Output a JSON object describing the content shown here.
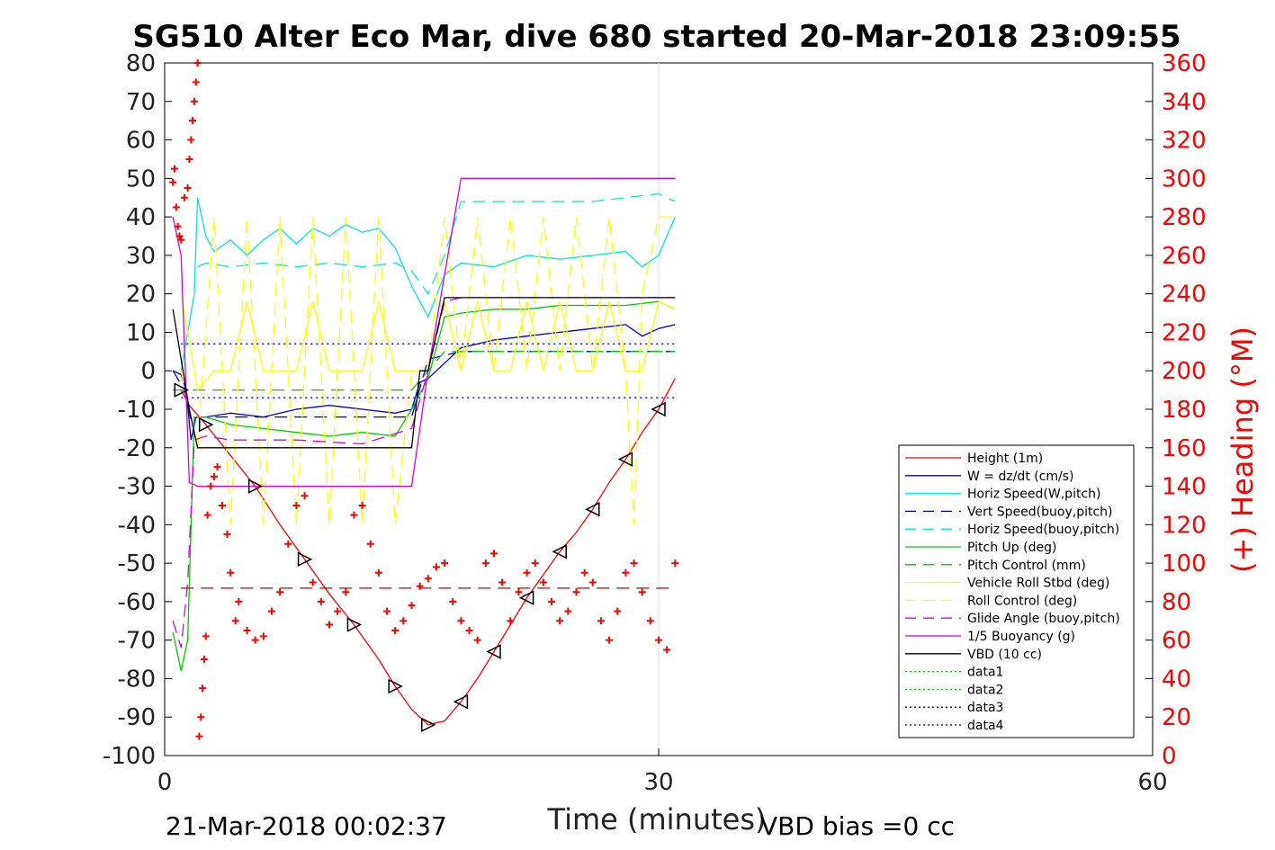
{
  "chart_data": {
    "type": "line",
    "title": "SG510 Alter Eco Mar, dive 680 started 20-Mar-2018 23:09:55",
    "xlabel": "Time (minutes)",
    "ylabel_right": "(+) Heading (°M)",
    "xlim": [
      0,
      60
    ],
    "ylim": [
      -100,
      80
    ],
    "ylim_right": [
      0,
      360
    ],
    "xticks": [
      "0",
      "30",
      "60"
    ],
    "yticks": [
      "80",
      "70",
      "60",
      "50",
      "40",
      "30",
      "20",
      "10",
      "0",
      "-10",
      "-20",
      "-30",
      "-40",
      "-50",
      "-60",
      "-70",
      "-80",
      "-90",
      "-100"
    ],
    "yticks_right": [
      "360",
      "340",
      "320",
      "300",
      "280",
      "260",
      "240",
      "220",
      "200",
      "180",
      "160",
      "140",
      "120",
      "100",
      "80",
      "60",
      "40",
      "20",
      "0"
    ],
    "footer_left": "21-Mar-2018 00:02:37",
    "footer_right": "VBD bias =0 cc",
    "grid": "vertical at x=30",
    "legend_position": "bottom-right",
    "legend": [
      {
        "label": "Height (1m)",
        "color": "#ff0000",
        "style": "solid"
      },
      {
        "label": "W = dz/dt (cm/s)",
        "color": "#0000cc",
        "style": "solid"
      },
      {
        "label": "Horiz Speed(W,pitch)",
        "color": "#00e5e5",
        "style": "solid"
      },
      {
        "label": "Vert Speed(buoy,pitch)",
        "color": "#0000cc",
        "style": "dashed"
      },
      {
        "label": "Horiz Speed(buoy,pitch)",
        "color": "#00e5e5",
        "style": "dashed"
      },
      {
        "label": "Pitch Up (deg)",
        "color": "#00cc00",
        "style": "solid"
      },
      {
        "label": "Pitch Control (mm)",
        "color": "#00cc00",
        "style": "dashed"
      },
      {
        "label": "Vehicle Roll Stbd (deg)",
        "color": "#ffff00",
        "style": "solid"
      },
      {
        "label": "Roll Control (deg)",
        "color": "#ffff00",
        "style": "dashed"
      },
      {
        "label": "Glide Angle (buoy,pitch)",
        "color": "#dd00dd",
        "style": "dashed"
      },
      {
        "label": "1/5 Buoyancy (g)",
        "color": "#dd00dd",
        "style": "solid"
      },
      {
        "label": "VBD (10 cc)",
        "color": "#000000",
        "style": "solid"
      },
      {
        "label": "data1",
        "color": "#00cc00",
        "style": "dotted"
      },
      {
        "label": "data2",
        "color": "#00cc00",
        "style": "dotted"
      },
      {
        "label": "data3",
        "color": "#0000cc",
        "style": "dotted"
      },
      {
        "label": "data4",
        "color": "#0000cc",
        "style": "dotted"
      }
    ],
    "series": [
      {
        "name": "Height (1m)",
        "color": "#ff0000",
        "style": "solid",
        "x": [
          1.0,
          1.5,
          2.5,
          4,
          5.5,
          7,
          8.5,
          10,
          11.5,
          13,
          14,
          15,
          16,
          17,
          18,
          19,
          20,
          21,
          22,
          23,
          24,
          25,
          26,
          27,
          28,
          29,
          30,
          31
        ],
        "y": [
          -5,
          -9,
          -14,
          -22,
          -30,
          -40,
          -49,
          -58,
          -66,
          -75,
          -82,
          -88,
          -92,
          -91,
          -86,
          -80,
          -73,
          -66,
          -59,
          -53,
          -47,
          -42,
          -36,
          -29,
          -23,
          -16,
          -10,
          -2
        ]
      },
      {
        "name": "W = dz/dt (cm/s)",
        "color": "#0000cc",
        "style": "solid",
        "x": [
          0.5,
          1.0,
          1.3,
          1.6,
          1.9,
          2.5,
          4,
          6,
          8,
          10,
          12,
          14,
          15,
          15.5,
          16,
          16.5,
          18,
          20,
          22,
          24,
          26,
          28,
          29,
          30,
          31
        ],
        "y": [
          0,
          -1,
          -5,
          -18,
          -12,
          -12,
          -11,
          -12,
          -10,
          -9,
          -10,
          -11,
          -10,
          -3,
          -2,
          0,
          6,
          8,
          9,
          10,
          11,
          12,
          9,
          11,
          12
        ]
      },
      {
        "name": "Horiz Speed(W,pitch)",
        "color": "#00e5e5",
        "style": "solid",
        "x": [
          1.0,
          1.8,
          2.0,
          2.5,
          3,
          4,
          5,
          6,
          7,
          8,
          9,
          10,
          11,
          12,
          13,
          14,
          15,
          16,
          17,
          18,
          20,
          22,
          24,
          26,
          28,
          29,
          30,
          31
        ],
        "y": [
          0,
          20,
          45,
          35,
          31,
          34,
          30,
          34,
          37,
          33,
          37,
          35,
          38,
          36,
          37,
          32,
          22,
          14,
          25,
          28,
          27,
          30,
          29,
          30,
          31,
          27,
          30,
          40
        ]
      },
      {
        "name": "Vert Speed(buoy,pitch)",
        "color": "#0000cc",
        "style": "dashed",
        "x": [
          0.5,
          1.2,
          1.6,
          2,
          2.5,
          15,
          16,
          18,
          31
        ],
        "y": [
          0,
          -5,
          -13,
          -12,
          -12,
          -12,
          3,
          5,
          5
        ]
      },
      {
        "name": "Horiz Speed(buoy,pitch)",
        "color": "#00e5e5",
        "style": "dashed",
        "x": [
          2,
          2.5,
          4,
          6,
          8,
          10,
          12,
          14,
          15,
          16,
          17,
          18,
          20,
          22,
          24,
          26,
          28,
          30,
          31
        ],
        "y": [
          27,
          28,
          27,
          28,
          27,
          28,
          27,
          28,
          26,
          20,
          30,
          44,
          44,
          44,
          44,
          44,
          45,
          46,
          44
        ]
      },
      {
        "name": "Pitch Up (deg)",
        "color": "#00cc00",
        "style": "solid",
        "x": [
          0.5,
          1.0,
          1.4,
          1.8,
          2.5,
          4,
          6,
          8,
          10,
          12,
          14,
          15,
          16,
          17,
          18,
          20,
          22,
          24,
          26,
          28,
          30,
          31
        ],
        "y": [
          -68,
          -78,
          -70,
          -12,
          -12,
          -14,
          -15,
          -16,
          -17,
          -16,
          -17,
          -10,
          -2,
          14,
          15,
          16,
          16,
          17,
          17,
          17,
          18,
          16
        ]
      },
      {
        "name": "Pitch Control (mm)",
        "color": "#00cc00",
        "style": "dashed",
        "x": [
          0.5,
          2,
          15,
          16,
          17,
          31
        ],
        "y": [
          -5,
          -5,
          -5,
          0,
          5,
          5
        ]
      },
      {
        "name": "Vehicle Roll Stbd (deg)",
        "color": "#ffff00",
        "style": "solid",
        "x": [
          1,
          2,
          3,
          4,
          5,
          6,
          7,
          8,
          9,
          10,
          11,
          12,
          13,
          14,
          15,
          16,
          17,
          18,
          19,
          20,
          21,
          22,
          23,
          24,
          25,
          26,
          27,
          28,
          29,
          30,
          31
        ],
        "y": [
          20,
          -5,
          0,
          0,
          18,
          0,
          0,
          0,
          18,
          0,
          0,
          0,
          18,
          0,
          0,
          0,
          18,
          0,
          18,
          0,
          0,
          18,
          0,
          18,
          0,
          0,
          18,
          0,
          0,
          18,
          16
        ]
      },
      {
        "name": "Roll Control (deg)",
        "color": "#ffff00",
        "style": "dashed",
        "x": [
          1,
          2,
          3,
          4,
          5,
          6,
          7,
          8,
          9,
          10,
          11,
          12,
          13,
          14,
          15,
          16,
          17,
          18,
          19,
          20,
          21,
          22,
          23,
          24,
          25,
          26,
          27,
          28,
          28.5,
          29,
          30,
          31
        ],
        "y": [
          0,
          -20,
          40,
          -40,
          40,
          -40,
          40,
          -40,
          40,
          -40,
          40,
          -40,
          40,
          -40,
          0,
          0,
          40,
          0,
          40,
          0,
          40,
          0,
          40,
          0,
          40,
          0,
          40,
          0,
          -40,
          20,
          40,
          40
        ]
      },
      {
        "name": "Glide Angle (buoy,pitch)",
        "color": "#dd00dd",
        "style": "dashed",
        "x": [
          0.5,
          1.0,
          1.4,
          1.8,
          2.5,
          4,
          8,
          12,
          15,
          16,
          17,
          18,
          22,
          26,
          31
        ],
        "y": [
          -65,
          -72,
          -55,
          -18,
          -17,
          -18,
          -18,
          -19,
          -15,
          0,
          18,
          19,
          19,
          19,
          19
        ]
      },
      {
        "name": "1/5 Buoyancy (g)",
        "color": "#dd00dd",
        "style": "solid",
        "x": [
          0.5,
          1.0,
          1.5,
          2.0,
          15,
          16,
          18,
          31
        ],
        "y": [
          40,
          30,
          -29,
          -30,
          -30,
          0,
          50,
          50
        ]
      },
      {
        "name": "VBD (10 cc)",
        "color": "#000000",
        "style": "solid",
        "x": [
          0.5,
          1.5,
          2.0,
          14,
          15,
          15.5,
          16,
          17,
          31
        ],
        "y": [
          16,
          -10,
          -20,
          -20,
          -20,
          0,
          0,
          19,
          19
        ]
      },
      {
        "name": "data1",
        "color": "#0000cc",
        "style": "dotted",
        "x": [
          1.0,
          31
        ],
        "y": [
          7,
          7
        ]
      },
      {
        "name": "data2",
        "color": "#0000cc",
        "style": "dotted",
        "x": [
          1.0,
          31
        ],
        "y": [
          -7,
          -7
        ]
      },
      {
        "name": "data3",
        "color": "#cc0000",
        "style": "dashed",
        "x": [
          1.0,
          31
        ],
        "y": [
          -56.5,
          -56.5
        ]
      },
      {
        "name": "Heading",
        "color": "#ff0000",
        "style": "marker",
        "axis": "right",
        "x": [
          0.5,
          0.6,
          0.7,
          0.8,
          0.9,
          1.0,
          1.2,
          1.4,
          1.5,
          1.6,
          1.7,
          1.8,
          1.9,
          2.0,
          2.1,
          2.2,
          2.3,
          2.4,
          2.5,
          2.6,
          2.8,
          3.0,
          3.2,
          3.5,
          3.8,
          4.0,
          4.3,
          4.5,
          5.0,
          5.5,
          6.0,
          6.5,
          7.0,
          7.5,
          8.0,
          8.5,
          9.0,
          9.5,
          10.0,
          10.5,
          11.0,
          11.5,
          12.0,
          12.5,
          13.0,
          13.5,
          14.0,
          14.5,
          15.0,
          15.5,
          16.0,
          16.5,
          17.0,
          17.5,
          18.0,
          18.5,
          19.0,
          19.5,
          20.0,
          20.5,
          21.0,
          21.5,
          22.0,
          22.5,
          23.0,
          23.5,
          24.0,
          24.5,
          25.0,
          25.5,
          26.0,
          26.5,
          27.0,
          27.5,
          28.0,
          28.5,
          29.0,
          29.5,
          30.0,
          30.5,
          31.0
        ],
        "y": [
          298,
          305,
          285,
          275,
          270,
          268,
          290,
          295,
          310,
          320,
          330,
          340,
          350,
          360,
          10,
          20,
          35,
          50,
          62,
          125,
          140,
          145,
          150,
          130,
          115,
          95,
          70,
          80,
          65,
          60,
          62,
          75,
          85,
          110,
          130,
          135,
          90,
          80,
          68,
          75,
          85,
          125,
          130,
          110,
          95,
          75,
          65,
          70,
          78,
          88,
          92,
          98,
          100,
          80,
          70,
          65,
          60,
          100,
          105,
          90,
          70,
          85,
          95,
          100,
          90,
          80,
          70,
          75,
          85,
          95,
          90,
          70,
          60,
          75,
          95,
          100,
          85,
          70,
          60,
          55,
          100
        ]
      }
    ]
  }
}
